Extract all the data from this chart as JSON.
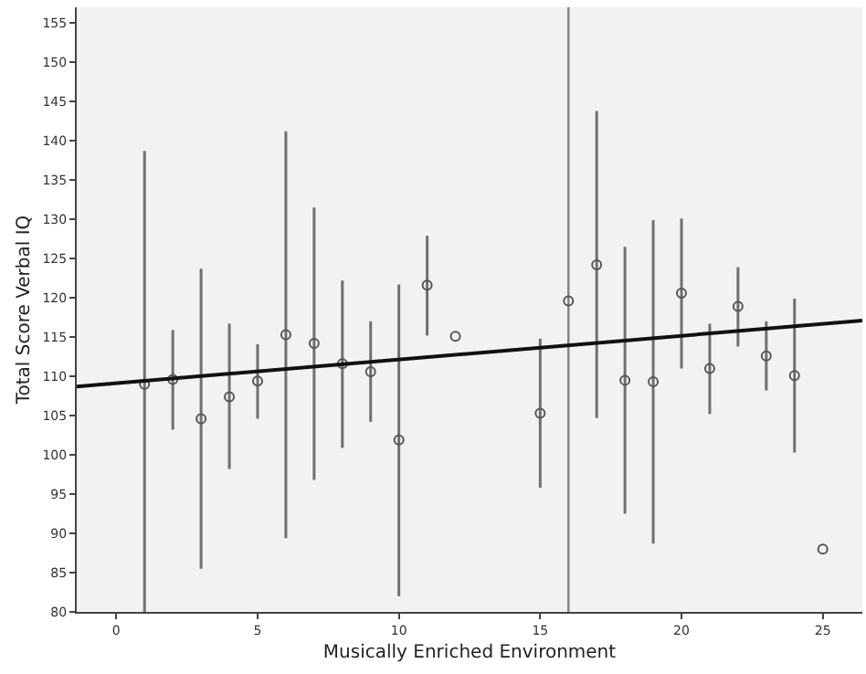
{
  "chart_data": {
    "type": "scatter",
    "xlabel": "Musically Enriched Environment",
    "ylabel": "Total Score Verbal IQ",
    "xlim": [
      -1.4,
      26.4
    ],
    "xticks": [
      0,
      5,
      10,
      15,
      20,
      25
    ],
    "ylim": [
      80,
      157
    ],
    "yticks": [
      80,
      85,
      90,
      95,
      100,
      105,
      110,
      115,
      120,
      125,
      130,
      135,
      140,
      145,
      150,
      155
    ],
    "grid": false,
    "legend": false,
    "marker": "circle",
    "series": [
      {
        "color": "#555555",
        "x": [
          1,
          2,
          3,
          4,
          5,
          6,
          7,
          8,
          9,
          10,
          11,
          12,
          15,
          16,
          17,
          18,
          19,
          20,
          21,
          22,
          23,
          24,
          25
        ],
        "values": [
          109.0,
          109.6,
          104.6,
          107.4,
          109.4,
          115.3,
          114.2,
          111.6,
          110.6,
          101.9,
          121.6,
          115.1,
          105.3,
          119.6,
          124.2,
          109.5,
          109.3,
          120.6,
          111.0,
          118.9,
          112.6,
          110.1,
          88.0
        ],
        "errors": [
          [
            80,
            138.7
          ],
          [
            103.2,
            115.9
          ],
          [
            85.5,
            123.7
          ],
          [
            98.2,
            116.7
          ],
          [
            104.6,
            114.1
          ],
          [
            89.4,
            141.2
          ],
          [
            96.8,
            131.5
          ],
          [
            100.9,
            122.2
          ],
          [
            104.2,
            117.0
          ],
          [
            82.0,
            121.7
          ],
          [
            115.2,
            127.9
          ],
          null,
          [
            95.8,
            114.8
          ],
          null,
          [
            104.7,
            143.8
          ],
          [
            92.5,
            126.5
          ],
          [
            88.7,
            129.9
          ],
          [
            111.0,
            130.1
          ],
          [
            105.2,
            116.7
          ],
          [
            113.8,
            123.9
          ],
          [
            108.2,
            117.0
          ],
          [
            100.3,
            119.9
          ],
          null
        ]
      },
      {
        "type": "line",
        "color": "#111111",
        "x": [
          -1.4,
          26.4
        ],
        "values": [
          108.7,
          117.1
        ],
        "line_style": "solid",
        "marker": "none"
      }
    ],
    "ref_lines": [
      {
        "axis": "x",
        "value": 16,
        "color": "#808080"
      }
    ]
  }
}
